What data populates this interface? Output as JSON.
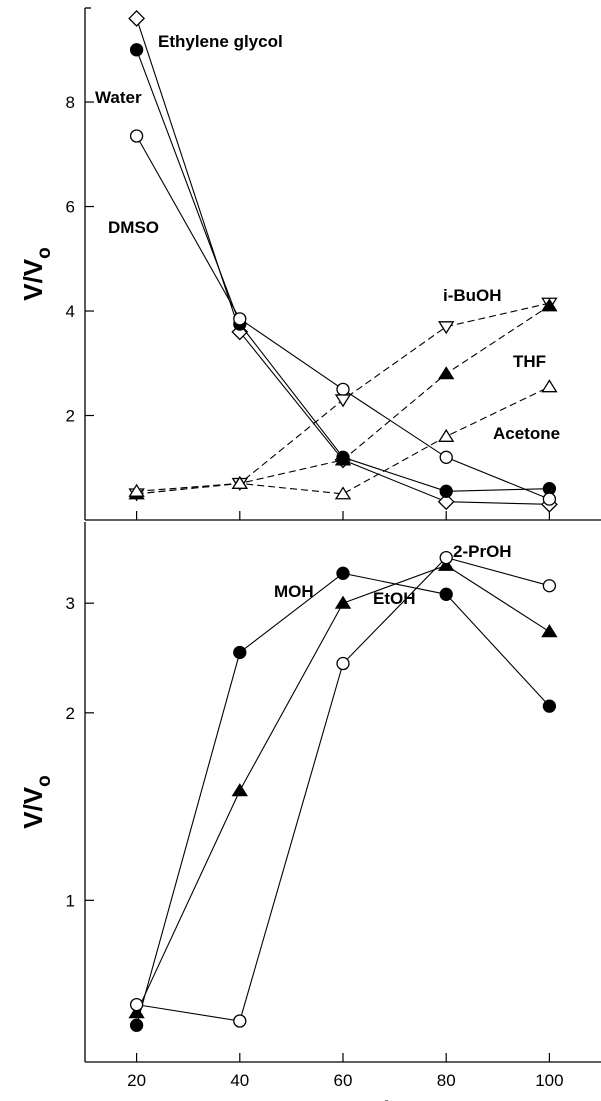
{
  "chart_data": [
    {
      "type": "line",
      "panel": "top",
      "ylabel_main": "V/V",
      "ylabel_sub": "o",
      "xlim": [
        10,
        110
      ],
      "ylim": [
        0,
        9.8
      ],
      "yticks": [
        2,
        4,
        6,
        8
      ],
      "annotations": [
        "Ethylene glycol",
        "Water",
        "DMSO",
        "i-BuOH",
        "THF",
        "Acetone"
      ],
      "series": [
        {
          "label_ref": "Ethylene glycol",
          "marker": "diamond-open",
          "dash": false,
          "x": [
            20,
            40,
            60,
            80,
            100
          ],
          "y": [
            9.6,
            3.6,
            1.15,
            0.35,
            0.3
          ]
        },
        {
          "label_ref": "Water",
          "marker": "circle-filled",
          "dash": false,
          "x": [
            20,
            40,
            60,
            80,
            100
          ],
          "y": [
            9.0,
            3.75,
            1.2,
            0.55,
            0.6
          ]
        },
        {
          "label_ref": "DMSO",
          "marker": "circle-open",
          "dash": false,
          "x": [
            20,
            40,
            60,
            80,
            100
          ],
          "y": [
            7.35,
            3.85,
            2.5,
            1.2,
            0.4
          ]
        },
        {
          "label_ref": "i-BuOH",
          "marker": "triangle-down-open",
          "dash": true,
          "x": [
            20,
            40,
            60,
            80,
            100
          ],
          "y": [
            0.5,
            0.7,
            2.3,
            3.7,
            4.15
          ]
        },
        {
          "label_ref": "THF",
          "marker": "triangle-up-filled",
          "dash": true,
          "x": [
            20,
            40,
            60,
            80,
            100
          ],
          "y": [
            0.5,
            0.7,
            1.15,
            2.8,
            4.1
          ]
        },
        {
          "label_ref": "Acetone",
          "marker": "triangle-up-open",
          "dash": true,
          "x": [
            20,
            40,
            60,
            80,
            100
          ],
          "y": [
            0.55,
            0.7,
            0.5,
            1.6,
            2.55
          ]
        }
      ]
    },
    {
      "type": "line",
      "panel": "bottom",
      "ylabel_main": "V/V",
      "ylabel_sub": "o",
      "xlabel": "TBA mol %",
      "xlim": [
        10,
        110
      ],
      "ylim": [
        0.55,
        4.05
      ],
      "yscale": "log",
      "yticks": [
        1,
        2,
        3
      ],
      "xticks": [
        20,
        40,
        60,
        80,
        100
      ],
      "annotations": [
        "MOH",
        "EtOH",
        "2-PrOH"
      ],
      "series": [
        {
          "label_ref": "MOH",
          "marker": "circle-filled",
          "dash": false,
          "x": [
            20,
            40,
            60,
            80,
            100
          ],
          "y": [
            0.63,
            2.5,
            3.35,
            3.1,
            2.05
          ]
        },
        {
          "label_ref": "EtOH",
          "marker": "triangle-up-filled",
          "dash": false,
          "x": [
            20,
            40,
            60,
            80,
            100
          ],
          "y": [
            0.66,
            1.5,
            3.0,
            3.45,
            2.7
          ]
        },
        {
          "label_ref": "2-PrOH",
          "marker": "circle-open",
          "dash": false,
          "x": [
            20,
            40,
            60,
            80,
            100
          ],
          "y": [
            0.68,
            0.64,
            2.4,
            3.55,
            3.2
          ]
        }
      ]
    }
  ]
}
